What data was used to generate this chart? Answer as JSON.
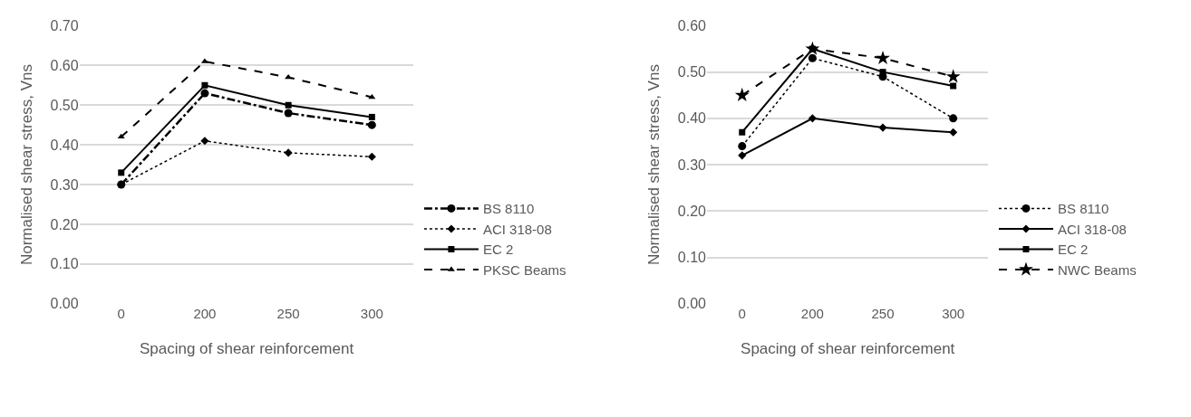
{
  "chart_data": [
    {
      "type": "line",
      "xlabel": "Spacing of shear reinforcement",
      "ylabel": "Normalised shear stress, Vns",
      "categories": [
        "0",
        "200",
        "250",
        "300"
      ],
      "ylim": [
        0,
        0.7
      ],
      "yticks": [
        {
          "value": 0,
          "label": "0.00"
        },
        {
          "value": 0.1,
          "label": "0.10"
        },
        {
          "value": 0.2,
          "label": "0.20"
        },
        {
          "value": 0.3,
          "label": "0.30"
        },
        {
          "value": 0.4,
          "label": "0.40"
        },
        {
          "value": 0.5,
          "label": "0.50"
        },
        {
          "value": 0.6,
          "label": "0.60"
        },
        {
          "value": 0.7,
          "label": "0.70"
        }
      ],
      "grid": "y",
      "legend": "right",
      "series": [
        {
          "name": "BS 8110",
          "color": "#000000",
          "values": [
            0.3,
            0.53,
            0.48,
            0.45
          ],
          "marker": "circle",
          "line_style": "dashdot"
        },
        {
          "name": "ACI 318-08",
          "color": "#000000",
          "values": [
            0.3,
            0.41,
            0.38,
            0.37
          ],
          "marker": "diamond",
          "line_style": "dotted"
        },
        {
          "name": "EC 2",
          "color": "#000000",
          "values": [
            0.33,
            0.55,
            0.5,
            0.47
          ],
          "marker": "square",
          "line_style": "solid"
        },
        {
          "name": "PKSC Beams",
          "color": "#000000",
          "values": [
            0.42,
            0.61,
            0.57,
            0.52
          ],
          "marker": "triangle",
          "line_style": "dashed"
        }
      ]
    },
    {
      "type": "line",
      "xlabel": "Spacing of shear reinforcement",
      "ylabel": "Normalised shear stress, Vns",
      "categories": [
        "0",
        "200",
        "250",
        "300"
      ],
      "ylim": [
        0,
        0.6
      ],
      "yticks": [
        {
          "value": 0,
          "label": "0.00"
        },
        {
          "value": 0.1,
          "label": "0.10"
        },
        {
          "value": 0.2,
          "label": "0.20"
        },
        {
          "value": 0.3,
          "label": "0.30"
        },
        {
          "value": 0.4,
          "label": "0.40"
        },
        {
          "value": 0.5,
          "label": "0.50"
        },
        {
          "value": 0.6,
          "label": "0.60"
        }
      ],
      "grid": "y",
      "legend": "right",
      "series": [
        {
          "name": "BS 8110",
          "color": "#000000",
          "values": [
            0.34,
            0.53,
            0.49,
            0.4
          ],
          "marker": "circle",
          "line_style": "dotted"
        },
        {
          "name": "ACI 318-08",
          "color": "#000000",
          "values": [
            0.32,
            0.4,
            0.38,
            0.37
          ],
          "marker": "diamond",
          "line_style": "solid"
        },
        {
          "name": "EC 2",
          "color": "#000000",
          "values": [
            0.37,
            0.55,
            0.5,
            0.47
          ],
          "marker": "square",
          "line_style": "solid"
        },
        {
          "name": "NWC Beams",
          "color": "#000000",
          "values": [
            0.45,
            0.55,
            0.53,
            0.49
          ],
          "marker": "star",
          "line_style": "dashed"
        }
      ]
    }
  ]
}
